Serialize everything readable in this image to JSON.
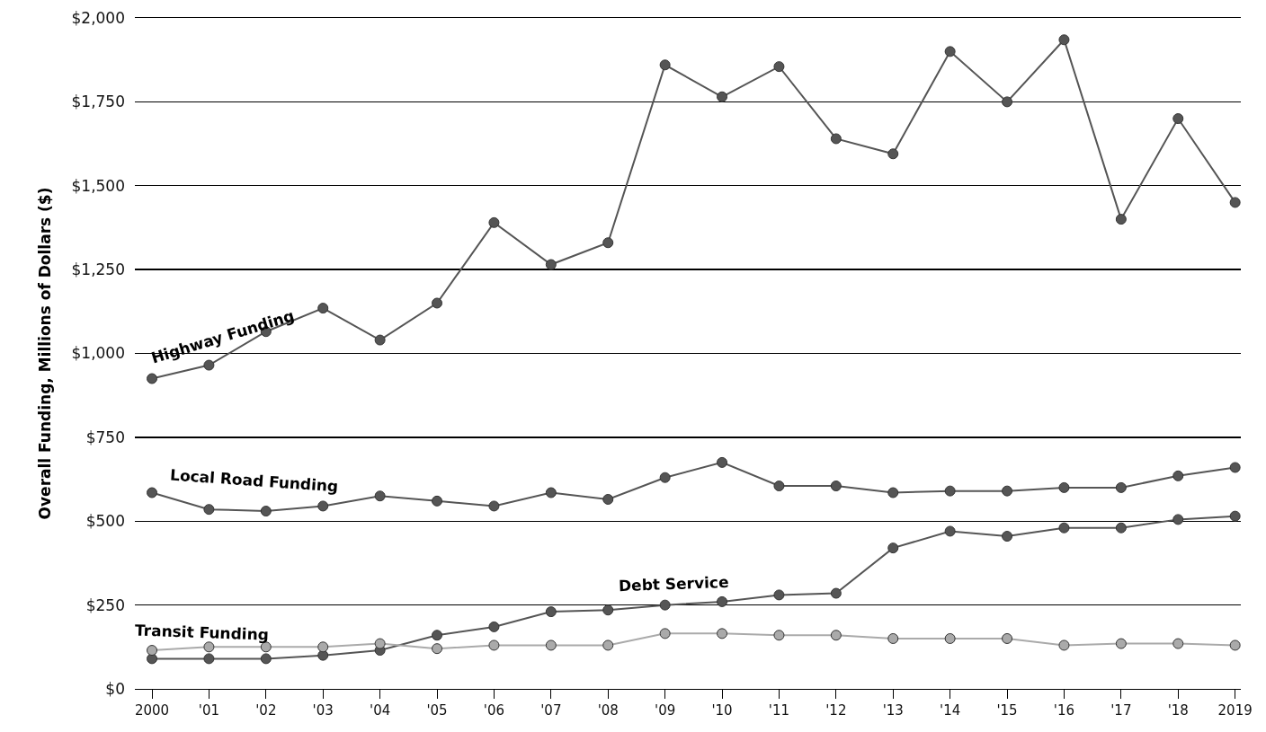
{
  "chart_data": {
    "type": "line",
    "ylabel": "Overall Funding, Millions of Dollars ($)",
    "x": [
      2000,
      2001,
      2002,
      2003,
      2004,
      2005,
      2006,
      2007,
      2008,
      2009,
      2010,
      2011,
      2012,
      2013,
      2014,
      2015,
      2016,
      2017,
      2018,
      2019
    ],
    "series": [
      {
        "name": "Highway Funding",
        "color": "#555555",
        "values": [
          925,
          965,
          1065,
          1135,
          1040,
          1150,
          1390,
          1265,
          1330,
          1860,
          1765,
          1855,
          1640,
          1595,
          1900,
          1750,
          1935,
          1400,
          1700,
          1450
        ]
      },
      {
        "name": "Local Road Funding",
        "color": "#555555",
        "values": [
          585,
          535,
          530,
          545,
          575,
          560,
          545,
          585,
          565,
          630,
          675,
          605,
          605,
          585,
          590,
          590,
          600,
          600,
          635,
          660
        ]
      },
      {
        "name": "Debt Service",
        "color": "#555555",
        "values": [
          90,
          90,
          90,
          100,
          115,
          160,
          185,
          230,
          235,
          250,
          260,
          280,
          285,
          420,
          470,
          455,
          480,
          480,
          505,
          515
        ]
      },
      {
        "name": "Transit Funding",
        "color": "#aaaaaa",
        "values": [
          115,
          125,
          125,
          125,
          135,
          120,
          130,
          130,
          130,
          165,
          165,
          160,
          160,
          150,
          150,
          150,
          130,
          135,
          135,
          130
        ]
      }
    ],
    "xlim": [
      1999.7,
      2019.1
    ],
    "xticks": [
      {
        "value": 2000,
        "label": "2000"
      },
      {
        "value": 2001,
        "label": "'01"
      },
      {
        "value": 2002,
        "label": "'02"
      },
      {
        "value": 2003,
        "label": "'03"
      },
      {
        "value": 2004,
        "label": "'04"
      },
      {
        "value": 2005,
        "label": "'05"
      },
      {
        "value": 2006,
        "label": "'06"
      },
      {
        "value": 2007,
        "label": "'07"
      },
      {
        "value": 2008,
        "label": "'08"
      },
      {
        "value": 2009,
        "label": "'09"
      },
      {
        "value": 2010,
        "label": "'10"
      },
      {
        "value": 2011,
        "label": "'11"
      },
      {
        "value": 2012,
        "label": "'12"
      },
      {
        "value": 2013,
        "label": "'13"
      },
      {
        "value": 2014,
        "label": "'14"
      },
      {
        "value": 2015,
        "label": "'15"
      },
      {
        "value": 2016,
        "label": "'16"
      },
      {
        "value": 2017,
        "label": "'17"
      },
      {
        "value": 2018,
        "label": "'18"
      },
      {
        "value": 2019,
        "label": "2019"
      }
    ],
    "ylim": [
      0,
      2000
    ],
    "yticks": [
      {
        "value": 0,
        "label": "$0"
      },
      {
        "value": 250,
        "label": "$250"
      },
      {
        "value": 500,
        "label": "$500"
      },
      {
        "value": 750,
        "label": "$750"
      },
      {
        "value": 1000,
        "label": "$1,000"
      },
      {
        "value": 1250,
        "label": "$1,250"
      },
      {
        "value": 1500,
        "label": "$1,500"
      },
      {
        "value": 1750,
        "label": "$1,750"
      },
      {
        "value": 2000,
        "label": "$2,000"
      }
    ],
    "grid": "y",
    "legend": false,
    "marker": "circle",
    "line_style": "solid"
  }
}
